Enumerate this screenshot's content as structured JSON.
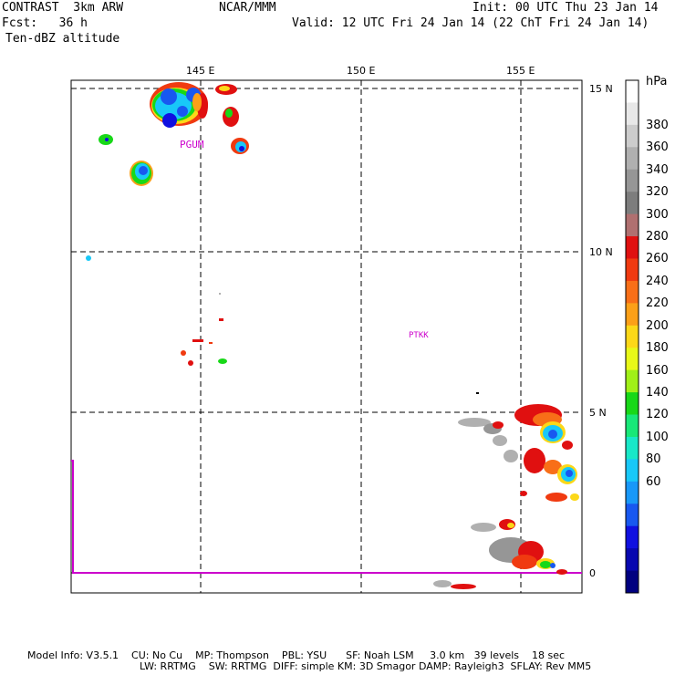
{
  "header": {
    "model": "CONTRAST  3km ARW",
    "center": "NCAR/MMM",
    "init": "Init: 00 UTC Thu 23 Jan 14",
    "fcst": "Fcst:   36 h",
    "valid": "Valid: 12 UTC Fri 24 Jan 14 (22 ChT Fri 24 Jan 14)",
    "field": "Ten-dBZ altitude"
  },
  "map": {
    "lon_labels": [
      "145 E",
      "150 E",
      "155 E"
    ],
    "lat_labels": [
      "15 N",
      "10 N",
      "5 N",
      "0"
    ],
    "stations": [
      {
        "id": "PGUM"
      },
      {
        "id": "PTKK"
      }
    ],
    "grid_style": "dashed",
    "boundary_color": "#cc00cc"
  },
  "colorbar": {
    "unit": "hPa",
    "labels": [
      "380",
      "360",
      "340",
      "320",
      "300",
      "280",
      "260",
      "240",
      "220",
      "200",
      "180",
      "160",
      "140",
      "120",
      "100",
      "80",
      "60"
    ],
    "colors": [
      "#ffffff",
      "#e8e8e8",
      "#cccccc",
      "#b0b0b0",
      "#969696",
      "#7d7d7d",
      "#b07070",
      "#e01010",
      "#f03a10",
      "#f86f18",
      "#fca018",
      "#fcd818",
      "#e8f818",
      "#a0f018",
      "#18d818",
      "#18e878",
      "#18e8c8",
      "#18c8f8",
      "#1898f8",
      "#1858f0",
      "#1010e0",
      "#0808b0",
      "#000080"
    ]
  },
  "footer": {
    "line1": "Model Info: V3.5.1    CU: No Cu    MP: Thompson    PBL: YSU      SF: Noah LSM     3.0 km   39 levels    18 sec",
    "line2": "LW: RRTMG    SW: RRTMG  DIFF: simple KM: 3D Smagor DAMP: Rayleigh3  SFLAY: Rev MM5"
  }
}
